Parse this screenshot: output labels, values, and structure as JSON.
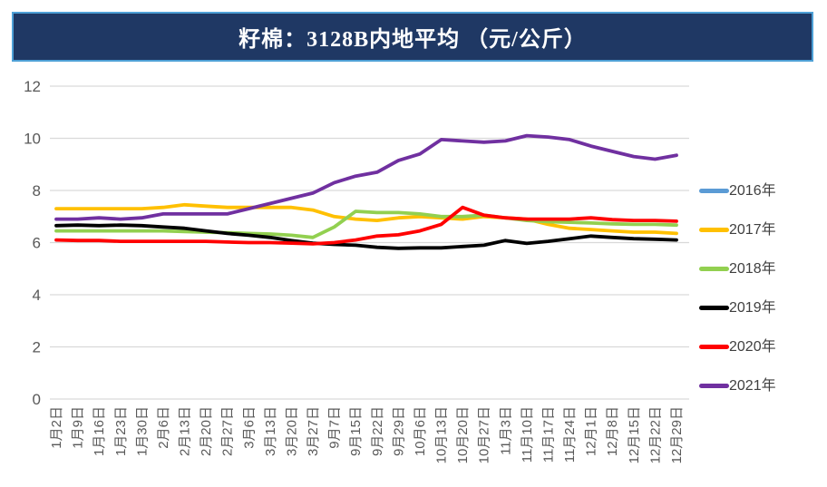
{
  "title": "籽棉：3128B内地平均 （元/公斤）",
  "colors": {
    "title_bar_bg": "#1F3864",
    "title_bar_border": "#4EA0D6",
    "title_text": "#FFFFFF",
    "gridline": "#D9D9D9",
    "axis_label": "#595959",
    "legend_text": "#3F3F3F",
    "plot_bg": "#FFFFFF"
  },
  "chart_data": {
    "type": "line",
    "title": "籽棉：3128B内地平均 （元/公斤）",
    "xlabel": "",
    "ylabel": "",
    "ylim": [
      0,
      12
    ],
    "ytick_step": 2,
    "ytick_labels": [
      "0",
      "2",
      "4",
      "6",
      "8",
      "10",
      "12"
    ],
    "grid": true,
    "legend_position": "right",
    "categories": [
      "1月2日",
      "1月9日",
      "1月16日",
      "1月23日",
      "1月30日",
      "2月6日",
      "2月13日",
      "2月20日",
      "2月27日",
      "3月6日",
      "3月13日",
      "3月20日",
      "3月27日",
      "9月7日",
      "9月15日",
      "9月22日",
      "9月29日",
      "10月6日",
      "10月13日",
      "10月20日",
      "10月27日",
      "11月3日",
      "11月10日",
      "11月17日",
      "11月24日",
      "12月1日",
      "12月8日",
      "12月15日",
      "12月22日",
      "12月29日"
    ],
    "series": [
      {
        "name": "2016年",
        "color": "#5B9BD5",
        "values": []
      },
      {
        "name": "2017年",
        "color": "#FFC000",
        "values": [
          7.3,
          7.3,
          7.3,
          7.3,
          7.3,
          7.35,
          7.45,
          7.4,
          7.35,
          7.35,
          7.35,
          7.35,
          7.25,
          7.0,
          6.9,
          6.85,
          6.95,
          7.0,
          6.95,
          6.9,
          7.0,
          6.95,
          6.9,
          6.7,
          6.55,
          6.5,
          6.45,
          6.4,
          6.4,
          6.35
        ]
      },
      {
        "name": "2018年",
        "color": "#92D050",
        "values": [
          6.45,
          6.45,
          6.45,
          6.45,
          6.45,
          6.45,
          6.42,
          6.4,
          6.38,
          6.35,
          6.33,
          6.28,
          6.2,
          6.6,
          7.2,
          7.15,
          7.15,
          7.1,
          7.0,
          7.0,
          7.05,
          6.95,
          6.85,
          6.8,
          6.78,
          6.75,
          6.72,
          6.7,
          6.7,
          6.67
        ]
      },
      {
        "name": "2019年",
        "color": "#000000",
        "values": [
          6.65,
          6.67,
          6.65,
          6.67,
          6.65,
          6.6,
          6.55,
          6.45,
          6.35,
          6.28,
          6.2,
          6.08,
          5.98,
          5.93,
          5.9,
          5.82,
          5.78,
          5.8,
          5.8,
          5.85,
          5.9,
          6.08,
          5.97,
          6.05,
          6.15,
          6.25,
          6.2,
          6.15,
          6.13,
          6.1
        ]
      },
      {
        "name": "2020年",
        "color": "#FF0000",
        "values": [
          6.1,
          6.08,
          6.08,
          6.05,
          6.05,
          6.05,
          6.05,
          6.05,
          6.02,
          6.0,
          6.0,
          5.98,
          5.95,
          6.0,
          6.1,
          6.25,
          6.3,
          6.45,
          6.7,
          7.35,
          7.05,
          6.95,
          6.9,
          6.9,
          6.9,
          6.95,
          6.88,
          6.85,
          6.85,
          6.82
        ]
      },
      {
        "name": "2021年",
        "color": "#7030A0",
        "values": [
          6.9,
          6.9,
          6.95,
          6.9,
          6.95,
          7.1,
          7.1,
          7.1,
          7.1,
          7.3,
          7.5,
          7.7,
          7.9,
          8.3,
          8.55,
          8.7,
          9.15,
          9.4,
          9.95,
          9.9,
          9.85,
          9.9,
          10.1,
          10.05,
          9.95,
          9.7,
          9.5,
          9.3,
          9.2,
          9.35
        ]
      }
    ]
  }
}
